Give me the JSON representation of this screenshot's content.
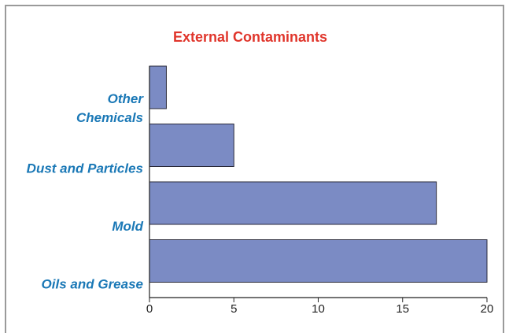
{
  "chart_data": {
    "type": "bar",
    "orientation": "horizontal",
    "title": "External Contaminants",
    "categories": [
      "Other Chemicals",
      "Dust and Particles",
      "Mold",
      "Oils and Grease"
    ],
    "values": [
      1,
      5,
      17,
      20
    ],
    "color": "#7b8bc4",
    "xlim": [
      0,
      20
    ],
    "xticks": [
      0,
      5,
      10,
      15,
      20
    ]
  }
}
